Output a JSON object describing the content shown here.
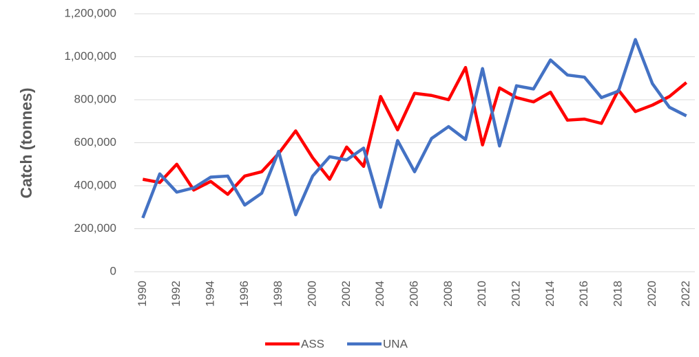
{
  "chart_data": {
    "type": "line",
    "y_label": "Catch (tonnes)",
    "x": [
      1990,
      1991,
      1992,
      1993,
      1994,
      1995,
      1996,
      1997,
      1998,
      1999,
      2000,
      2001,
      2002,
      2003,
      2004,
      2005,
      2006,
      2007,
      2008,
      2009,
      2010,
      2011,
      2012,
      2013,
      2014,
      2015,
      2016,
      2017,
      2018,
      2019,
      2020,
      2021,
      2022
    ],
    "xticks": [
      1990,
      1992,
      1994,
      1996,
      1998,
      2000,
      2002,
      2004,
      2006,
      2008,
      2010,
      2012,
      2014,
      2016,
      2018,
      2020,
      2022
    ],
    "ylim": [
      0,
      1200000
    ],
    "yticks": [
      0,
      {
        "value": 200000,
        "label": "200,000"
      },
      {
        "value": 400000,
        "label": "400,000"
      },
      {
        "value": 600000,
        "label": "600,000"
      },
      {
        "value": 800000,
        "label": "800,000"
      },
      {
        "value": 1000000,
        "label": "1,000,000"
      },
      {
        "value": 1200000,
        "label": "1,200,000"
      }
    ],
    "grid": true,
    "legend": "bottom",
    "series": [
      {
        "name": "ASS",
        "color": "#ff0000",
        "values": [
          430000,
          415000,
          500000,
          380000,
          420000,
          360000,
          445000,
          465000,
          550000,
          655000,
          530000,
          430000,
          580000,
          490000,
          815000,
          660000,
          830000,
          820000,
          800000,
          950000,
          590000,
          855000,
          810000,
          790000,
          835000,
          705000,
          710000,
          690000,
          845000,
          745000,
          775000,
          815000,
          880000
        ]
      },
      {
        "name": "UNA",
        "color": "#4472c4",
        "values": [
          250000,
          455000,
          370000,
          390000,
          440000,
          445000,
          310000,
          365000,
          560000,
          265000,
          445000,
          535000,
          520000,
          575000,
          300000,
          610000,
          465000,
          620000,
          675000,
          615000,
          945000,
          585000,
          865000,
          850000,
          985000,
          915000,
          905000,
          810000,
          840000,
          1080000,
          875000,
          765000,
          725000
        ]
      }
    ]
  }
}
